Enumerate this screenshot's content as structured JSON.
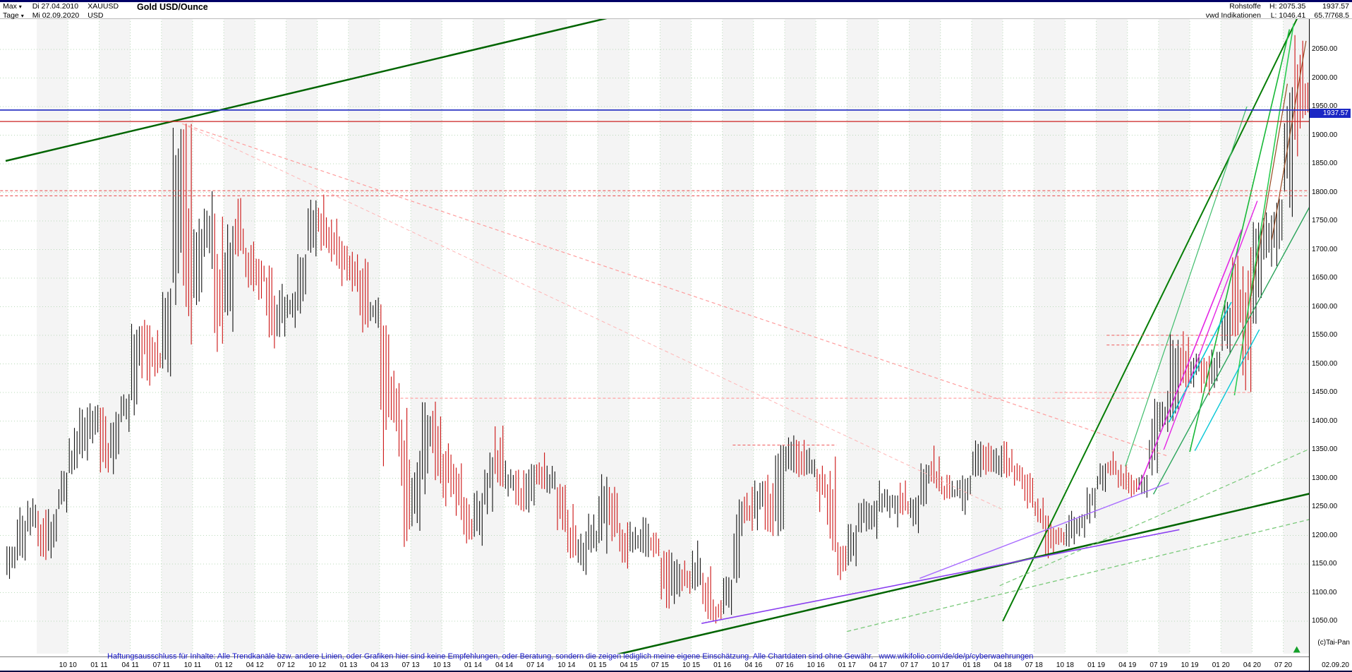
{
  "header": {
    "range_label": "Max",
    "start_date": "Di 27.04.2010",
    "symbol": "XAUUSD",
    "period_label": "Tage",
    "end_date": "Mi 02.09.2020",
    "currency": "USD",
    "title": "Gold USD/Ounce",
    "right": {
      "category": "Rohstoffe",
      "source": "vwd Indikationen",
      "high_label": "H: 2075.35",
      "low_label": "L: 1046.41",
      "last": "1937.57",
      "range_info": "65.7/768.5"
    }
  },
  "copyright": "(c)Tai-Pan",
  "disclaimer": {
    "text": "Haftungsausschluss für Inhalte: Alle Trendkanäle bzw. andere Linien, oder Grafiken hier sind keine Empfehlungen, oder Beratung, sondern die zeigen lediglich meine eigene Einschätzung. Alle Chartdaten sind ohne Gewähr.",
    "link": "www.wikifolio.com/de/de/p/cyberwaehrungen"
  },
  "y_axis": {
    "ticks": [
      "2050.00",
      "2000.00",
      "1950.00",
      "1900.00",
      "1850.00",
      "1800.00",
      "1750.00",
      "1700.00",
      "1650.00",
      "1600.00",
      "1550.00",
      "1500.00",
      "1450.00",
      "1400.00",
      "1350.00",
      "1300.00",
      "1250.00",
      "1200.00",
      "1150.00",
      "1100.00",
      "1050.00"
    ]
  },
  "x_axis": {
    "labels": [
      "10 10",
      "01 11",
      "04 11",
      "07 11",
      "10 11",
      "01 12",
      "04 12",
      "07 12",
      "10 12",
      "01 13",
      "04 13",
      "07 13",
      "10 13",
      "01 14",
      "04 14",
      "07 14",
      "10 14",
      "01 15",
      "04 15",
      "07 15",
      "10 15",
      "01 16",
      "04 16",
      "07 16",
      "10 16",
      "01 17",
      "04 17",
      "07 17",
      "10 17",
      "01 18",
      "04 18",
      "07 18",
      "10 18",
      "01 19",
      "04 19",
      "07 19",
      "10 19",
      "01 20",
      "04 20",
      "07 20"
    ],
    "last_label": "02.09.20"
  },
  "chart_data": {
    "type": "candlestick",
    "title": "Gold USD/Ounce",
    "symbol": "XAUUSD",
    "date_range": [
      "27.04.2010",
      "02.09.2020"
    ],
    "overall_high": 2075.35,
    "overall_low": 1046.41,
    "last_price": 1937.57,
    "ylim": [
      975,
      2160
    ],
    "interval": "monthly high/low/close approximation of the daily chart, Apr 2010 - Sep 2020",
    "high": [
      1181,
      1249,
      1265,
      1245,
      1246,
      1313,
      1388,
      1424,
      1431,
      1424,
      1416,
      1447,
      1570,
      1577,
      1559,
      1632,
      1913,
      1920,
      1754,
      1802,
      1763,
      1744,
      1790,
      1714,
      1684,
      1672,
      1640,
      1626,
      1692,
      1787,
      1796,
      1754,
      1723,
      1696,
      1684,
      1616,
      1604,
      1488,
      1423,
      1348,
      1433,
      1434,
      1361,
      1326,
      1267,
      1278,
      1345,
      1392,
      1331,
      1315,
      1325,
      1345,
      1322,
      1290,
      1255,
      1207,
      1238,
      1307,
      1285,
      1223,
      1224,
      1232,
      1205,
      1175,
      1170,
      1156,
      1191,
      1146,
      1088,
      1128,
      1263,
      1285,
      1296,
      1306,
      1358,
      1375,
      1367,
      1353,
      1322,
      1338,
      1188,
      1220,
      1264,
      1261,
      1296,
      1271,
      1296,
      1270,
      1326,
      1357,
      1306,
      1297,
      1305,
      1366,
      1362,
      1357,
      1365,
      1326,
      1309,
      1266,
      1235,
      1214,
      1243,
      1237,
      1284,
      1326,
      1347,
      1324,
      1310,
      1306,
      1439,
      1453,
      1555,
      1557,
      1518,
      1514,
      1525,
      1611,
      1689,
      1704,
      1748,
      1765,
      1789,
      1984,
      2075,
      1992
    ],
    "low": [
      1124,
      1156,
      1200,
      1157,
      1160,
      1240,
      1307,
      1331,
      1361,
      1310,
      1307,
      1381,
      1410,
      1462,
      1478,
      1478,
      1603,
      1534,
      1603,
      1666,
      1521,
      1556,
      1688,
      1627,
      1612,
      1527,
      1547,
      1563,
      1588,
      1688,
      1698,
      1672,
      1636,
      1626,
      1555,
      1563,
      1321,
      1338,
      1180,
      1208,
      1272,
      1291,
      1251,
      1227,
      1186,
      1182,
      1237,
      1285,
      1268,
      1242,
      1240,
      1281,
      1273,
      1206,
      1160,
      1131,
      1170,
      1168,
      1190,
      1142,
      1170,
      1162,
      1162,
      1072,
      1080,
      1098,
      1104,
      1052,
      1046,
      1061,
      1117,
      1208,
      1209,
      1199,
      1199,
      1310,
      1302,
      1302,
      1241,
      1171,
      1122,
      1146,
      1205,
      1194,
      1240,
      1214,
      1236,
      1204,
      1251,
      1277,
      1262,
      1265,
      1236,
      1302,
      1306,
      1302,
      1301,
      1281,
      1247,
      1211,
      1160,
      1183,
      1180,
      1196,
      1221,
      1276,
      1305,
      1280,
      1266,
      1266,
      1305,
      1381,
      1400,
      1459,
      1459,
      1445,
      1458,
      1517,
      1548,
      1451,
      1570,
      1670,
      1671,
      1757,
      1863,
      1928
    ],
    "close": [
      1179,
      1215,
      1244,
      1169,
      1246,
      1307,
      1346,
      1385,
      1421,
      1327,
      1411,
      1439,
      1563,
      1536,
      1500,
      1628,
      1826,
      1620,
      1722,
      1746,
      1564,
      1737,
      1696,
      1668,
      1664,
      1562,
      1597,
      1614,
      1691,
      1771,
      1720,
      1714,
      1675,
      1662,
      1588,
      1596,
      1476,
      1387,
      1234,
      1312,
      1395,
      1327,
      1323,
      1253,
      1205,
      1251,
      1326,
      1291,
      1291,
      1250,
      1315,
      1285,
      1287,
      1208,
      1173,
      1175,
      1184,
      1283,
      1213,
      1184,
      1184,
      1190,
      1172,
      1095,
      1134,
      1115,
      1142,
      1064,
      1060,
      1118,
      1238,
      1232,
      1292,
      1215,
      1322,
      1351,
      1309,
      1316,
      1277,
      1173,
      1152,
      1210,
      1248,
      1249,
      1268,
      1269,
      1241,
      1269,
      1321,
      1280,
      1271,
      1275,
      1303,
      1345,
      1318,
      1325,
      1315,
      1298,
      1253,
      1224,
      1201,
      1192,
      1215,
      1222,
      1282,
      1321,
      1313,
      1292,
      1283,
      1305,
      1409,
      1414,
      1520,
      1472,
      1513,
      1464,
      1517,
      1589,
      1586,
      1577,
      1686,
      1730,
      1781,
      1976,
      1968,
      1940
    ],
    "trend_lines": [
      [
        0,
        1855,
        58,
        2105,
        "#006400",
        2.5,
        ""
      ],
      [
        53.7,
        970,
        126,
        1275,
        "#006400",
        2.5,
        ""
      ],
      [
        96,
        1050,
        124.5,
        2110,
        "#067d06",
        2,
        ""
      ],
      [
        114,
        1346,
        123.6,
        2085,
        "#17b837",
        1.6,
        ""
      ],
      [
        118.3,
        1445,
        124,
        2095,
        "#2bcc52",
        1.6,
        ""
      ],
      [
        110.5,
        1272,
        126,
        1790,
        "#2aa45a",
        1.4,
        ""
      ],
      [
        107.8,
        1321,
        119.5,
        1950,
        "#3fbd6b",
        1.2,
        ""
      ],
      [
        81,
        1032,
        126,
        1230,
        "#79c979",
        1.3,
        "6,4"
      ],
      [
        95.7,
        1112,
        126,
        1355,
        "#79c979",
        1.2,
        "6,4"
      ],
      [
        67,
        1046,
        113,
        1210,
        "#8a3ff0",
        1.6,
        ""
      ],
      [
        88,
        1125,
        112,
        1292,
        "#a86cff",
        1.4,
        ""
      ],
      [
        109,
        1280,
        119,
        1735,
        "#e425e4",
        1.6,
        ""
      ],
      [
        111.5,
        1350,
        120.5,
        1785,
        "#e425e4",
        1.4,
        ""
      ],
      [
        112,
        1398,
        118,
        1608,
        "#07c7d6",
        1.6,
        ""
      ],
      [
        114.5,
        1348,
        120.7,
        1560,
        "#07c7d6",
        1.4,
        ""
      ],
      [
        121.9,
        1717,
        125.2,
        2065,
        "#96491f",
        1.2,
        ""
      ],
      [
        119.9,
        1618,
        123.4,
        1990,
        "#96491f",
        1.2,
        ""
      ],
      [
        17,
        1920,
        112,
        1338,
        "#ff9c9c",
        1.2,
        "5,4"
      ],
      [
        17,
        1920,
        96,
        1245,
        "#ffb6b6",
        1,
        "5,4"
      ],
      [
        -1,
        1944,
        126,
        1944,
        "#2b35c4",
        1.8,
        ""
      ],
      [
        -1,
        1924,
        126,
        1924,
        "#cc2222",
        1.2,
        ""
      ],
      [
        -1,
        1803,
        126,
        1803,
        "#e84848",
        1,
        "4,3"
      ],
      [
        -1,
        1794,
        126,
        1794,
        "#e84848",
        1,
        "4,3"
      ],
      [
        38,
        1440,
        110,
        1440,
        "#ff8f8f",
        1,
        "4,3"
      ],
      [
        106,
        1550,
        118.5,
        1550,
        "#ef5b5b",
        1,
        "4,3"
      ],
      [
        106,
        1533,
        119.5,
        1533,
        "#ef5b5b",
        1,
        "4,3"
      ],
      [
        70,
        1358,
        80,
        1358,
        "#ef5b5b",
        1,
        "4,3"
      ],
      [
        101,
        1450,
        120,
        1450,
        "#ff8f8f",
        1,
        "4,3"
      ]
    ],
    "marker": {
      "m": 124.3,
      "p": 1000,
      "symbol": "up-triangle",
      "color": "#14a02a"
    },
    "colors": {
      "up_candle": "#111111",
      "down_candle": "#cc1111",
      "grid": "#b9d9b9",
      "stripe": "#f4f4f4"
    }
  }
}
